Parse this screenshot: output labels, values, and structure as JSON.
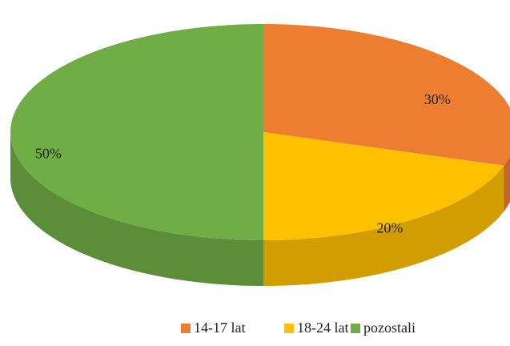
{
  "chart_data": {
    "type": "pie",
    "categories": [
      "14-17 lat",
      "18-24 lat",
      "pozostali"
    ],
    "values": [
      30,
      20,
      50
    ],
    "value_labels": [
      "30%",
      "20%",
      "50%"
    ],
    "colors": [
      "#ed7d31",
      "#ffc000",
      "#70ad47"
    ],
    "legend": "bottom"
  }
}
